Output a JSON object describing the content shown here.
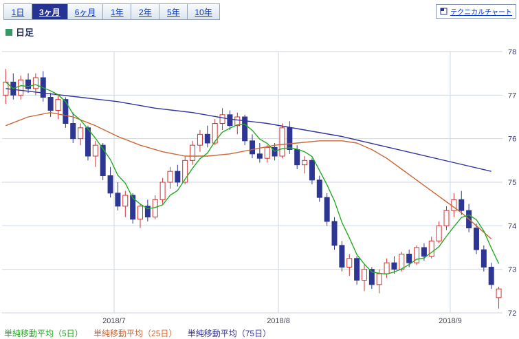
{
  "toolbar": {
    "periods": [
      {
        "label": "1日",
        "active": false
      },
      {
        "label": "3ヶ月",
        "active": true
      },
      {
        "label": "6ヶ月",
        "active": false
      },
      {
        "label": "1年",
        "active": false
      },
      {
        "label": "2年",
        "active": false
      },
      {
        "label": "5年",
        "active": false
      },
      {
        "label": "10年",
        "active": false
      }
    ],
    "technical_button": {
      "label": "テクニカルチャート"
    }
  },
  "chart_header": {
    "label": "日足",
    "marker_color": "#339966"
  },
  "chart_data": {
    "type": "candlestick",
    "title": "日足",
    "xlabel": "",
    "ylabel": "",
    "grid": true,
    "legend_position": "bottom",
    "y_ticks": [
      72,
      73,
      74,
      75,
      76,
      77,
      78
    ],
    "ylim": [
      72,
      78
    ],
    "x_ticks": [
      {
        "label": "2018/7",
        "index": 15
      },
      {
        "label": "2018/8",
        "index": 37
      },
      {
        "label": "2018/9",
        "index": 60
      }
    ],
    "colors": {
      "up_fill": "#ffffff",
      "up_stroke": "#cc3333",
      "down_fill": "#2e3694",
      "down_stroke": "#2e3694",
      "grid": "#ccd6e2",
      "axis_text": "#333366",
      "xaxis_text": "#444455"
    },
    "candles": [
      [
        77.0,
        77.6,
        76.8,
        77.3
      ],
      [
        77.3,
        77.5,
        76.9,
        77.0
      ],
      [
        77.0,
        77.45,
        76.9,
        77.35
      ],
      [
        77.35,
        77.5,
        77.05,
        77.15
      ],
      [
        77.15,
        77.5,
        77.0,
        77.4
      ],
      [
        77.4,
        77.55,
        76.85,
        76.95
      ],
      [
        76.95,
        77.05,
        76.5,
        76.65
      ],
      [
        76.65,
        77.0,
        76.45,
        76.9
      ],
      [
        76.9,
        76.95,
        76.25,
        76.35
      ],
      [
        76.35,
        76.6,
        75.9,
        76.0
      ],
      [
        76.0,
        76.35,
        75.85,
        76.25
      ],
      [
        76.25,
        76.3,
        75.5,
        75.6
      ],
      [
        75.6,
        75.95,
        75.35,
        75.85
      ],
      [
        75.85,
        75.9,
        75.05,
        75.15
      ],
      [
        75.15,
        75.35,
        74.65,
        74.75
      ],
      [
        74.75,
        75.0,
        74.35,
        74.45
      ],
      [
        74.45,
        74.8,
        74.2,
        74.7
      ],
      [
        74.7,
        74.75,
        74.05,
        74.15
      ],
      [
        74.15,
        74.5,
        73.95,
        74.45
      ],
      [
        74.45,
        74.6,
        74.1,
        74.2
      ],
      [
        74.2,
        74.7,
        74.15,
        74.6
      ],
      [
        74.6,
        75.1,
        74.5,
        75.0
      ],
      [
        75.0,
        75.35,
        74.85,
        75.25
      ],
      [
        75.25,
        75.4,
        74.9,
        75.0
      ],
      [
        75.0,
        75.6,
        74.95,
        75.5
      ],
      [
        75.5,
        75.95,
        75.4,
        75.85
      ],
      [
        75.85,
        76.2,
        75.7,
        76.1
      ],
      [
        76.1,
        76.3,
        75.8,
        75.9
      ],
      [
        75.9,
        76.45,
        75.85,
        76.35
      ],
      [
        76.35,
        76.7,
        76.2,
        76.55
      ],
      [
        76.55,
        76.65,
        76.2,
        76.3
      ],
      [
        76.3,
        76.6,
        76.1,
        76.5
      ],
      [
        76.5,
        76.55,
        75.85,
        75.95
      ],
      [
        75.95,
        76.1,
        75.55,
        75.65
      ],
      [
        75.65,
        75.9,
        75.45,
        75.55
      ],
      [
        75.55,
        75.85,
        75.45,
        75.8
      ],
      [
        75.8,
        75.9,
        75.5,
        75.6
      ],
      [
        75.6,
        76.35,
        75.55,
        76.25
      ],
      [
        76.25,
        76.4,
        75.65,
        75.75
      ],
      [
        75.75,
        75.85,
        75.3,
        75.4
      ],
      [
        75.4,
        75.6,
        75.2,
        75.5
      ],
      [
        75.5,
        75.55,
        74.95,
        75.05
      ],
      [
        75.05,
        75.15,
        74.55,
        74.65
      ],
      [
        74.65,
        74.75,
        74.0,
        74.1
      ],
      [
        74.1,
        74.2,
        73.45,
        73.55
      ],
      [
        73.55,
        73.65,
        72.95,
        73.05
      ],
      [
        73.05,
        73.35,
        72.85,
        73.25
      ],
      [
        73.25,
        73.3,
        72.65,
        72.75
      ],
      [
        72.75,
        73.1,
        72.5,
        73.0
      ],
      [
        73.0,
        73.05,
        72.55,
        72.65
      ],
      [
        72.65,
        73.0,
        72.45,
        72.9
      ],
      [
        72.9,
        73.25,
        72.8,
        73.15
      ],
      [
        73.15,
        73.3,
        72.9,
        73.0
      ],
      [
        73.0,
        73.4,
        72.95,
        73.35
      ],
      [
        73.35,
        73.45,
        73.05,
        73.15
      ],
      [
        73.15,
        73.55,
        73.1,
        73.5
      ],
      [
        73.5,
        73.6,
        73.2,
        73.3
      ],
      [
        73.3,
        73.75,
        73.25,
        73.65
      ],
      [
        73.65,
        74.1,
        73.6,
        74.0
      ],
      [
        74.0,
        74.45,
        73.9,
        74.35
      ],
      [
        74.35,
        74.75,
        74.2,
        74.6
      ],
      [
        74.6,
        74.8,
        74.25,
        74.35
      ],
      [
        74.35,
        74.5,
        73.85,
        73.95
      ],
      [
        73.95,
        74.05,
        73.35,
        73.45
      ],
      [
        73.45,
        73.55,
        72.95,
        73.05
      ],
      [
        73.05,
        73.15,
        72.55,
        72.65
      ],
      [
        72.35,
        72.6,
        72.1,
        72.55
      ]
    ],
    "series": [
      {
        "name": "単純移動平均（5日）",
        "color": "#22aa22",
        "window": 5
      },
      {
        "name": "単純移動平均（25日）",
        "color": "#cc6633",
        "points": [
          [
            0,
            76.3
          ],
          [
            3,
            76.5
          ],
          [
            6,
            76.6
          ],
          [
            9,
            76.5
          ],
          [
            12,
            76.3
          ],
          [
            15,
            76.05
          ],
          [
            18,
            75.85
          ],
          [
            21,
            75.7
          ],
          [
            24,
            75.6
          ],
          [
            27,
            75.6
          ],
          [
            30,
            75.65
          ],
          [
            33,
            75.75
          ],
          [
            36,
            75.85
          ],
          [
            39,
            75.9
          ],
          [
            42,
            75.95
          ],
          [
            45,
            75.95
          ],
          [
            47,
            75.9
          ],
          [
            49,
            75.75
          ],
          [
            51,
            75.55
          ],
          [
            53,
            75.3
          ],
          [
            55,
            75.05
          ],
          [
            57,
            74.8
          ],
          [
            59,
            74.55
          ],
          [
            61,
            74.3
          ],
          [
            63,
            74.0
          ],
          [
            65,
            73.7
          ]
        ]
      },
      {
        "name": "単純移動平均（75日）",
        "color": "#333399",
        "points": [
          [
            0,
            77.15
          ],
          [
            5,
            77.05
          ],
          [
            10,
            76.95
          ],
          [
            15,
            76.85
          ],
          [
            20,
            76.7
          ],
          [
            25,
            76.6
          ],
          [
            30,
            76.45
          ],
          [
            35,
            76.35
          ],
          [
            40,
            76.2
          ],
          [
            45,
            76.05
          ],
          [
            50,
            75.85
          ],
          [
            55,
            75.65
          ],
          [
            60,
            75.45
          ],
          [
            65,
            75.25
          ]
        ]
      }
    ]
  }
}
